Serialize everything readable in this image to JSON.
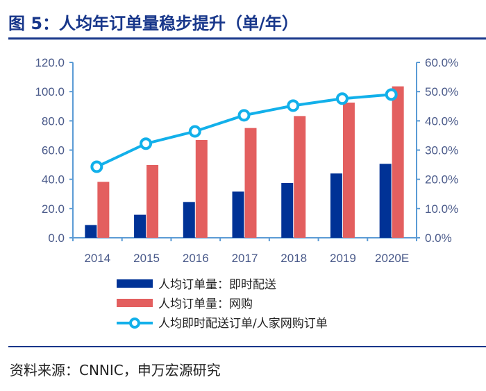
{
  "title": "图 5：人均年订单量稳步提升（单/年）",
  "source": "资料来源：CNNIC，申万宏源研究",
  "colors": {
    "instant": "#003296",
    "online": "#e35f5f",
    "ratio": "#12b0ea",
    "axis": "#5b9bd5"
  },
  "chart_data": {
    "type": "bar",
    "title": "人均年订单量稳步提升（单/年）",
    "categories": [
      "2014",
      "2015",
      "2016",
      "2017",
      "2018",
      "2019",
      "2020E"
    ],
    "left_ticks": [
      "0.0",
      "20.0",
      "40.0",
      "60.0",
      "80.0",
      "100.0",
      "120.0"
    ],
    "right_ticks": [
      "0.0%",
      "10.0%",
      "20.0%",
      "30.0%",
      "40.0%",
      "50.0%",
      "60.0%"
    ],
    "ylim": [
      0,
      120
    ],
    "y2lim": [
      0,
      60
    ],
    "series": [
      {
        "name": "人均订单量：即时配送",
        "type": "bar",
        "axis": "left",
        "values": [
          8.7,
          15.8,
          24.5,
          31.6,
          37.5,
          44.0,
          50.6
        ]
      },
      {
        "name": "人均订单量：网购",
        "type": "bar",
        "axis": "left",
        "values": [
          38.3,
          49.8,
          66.9,
          75.1,
          83.3,
          92.5,
          103.6
        ]
      },
      {
        "name": "人均即时配送订单/人家网购订单",
        "type": "line",
        "axis": "right",
        "values": [
          24.3,
          32.2,
          36.4,
          41.9,
          45.2,
          47.6,
          49.0
        ]
      }
    ],
    "legend": "bottom"
  }
}
